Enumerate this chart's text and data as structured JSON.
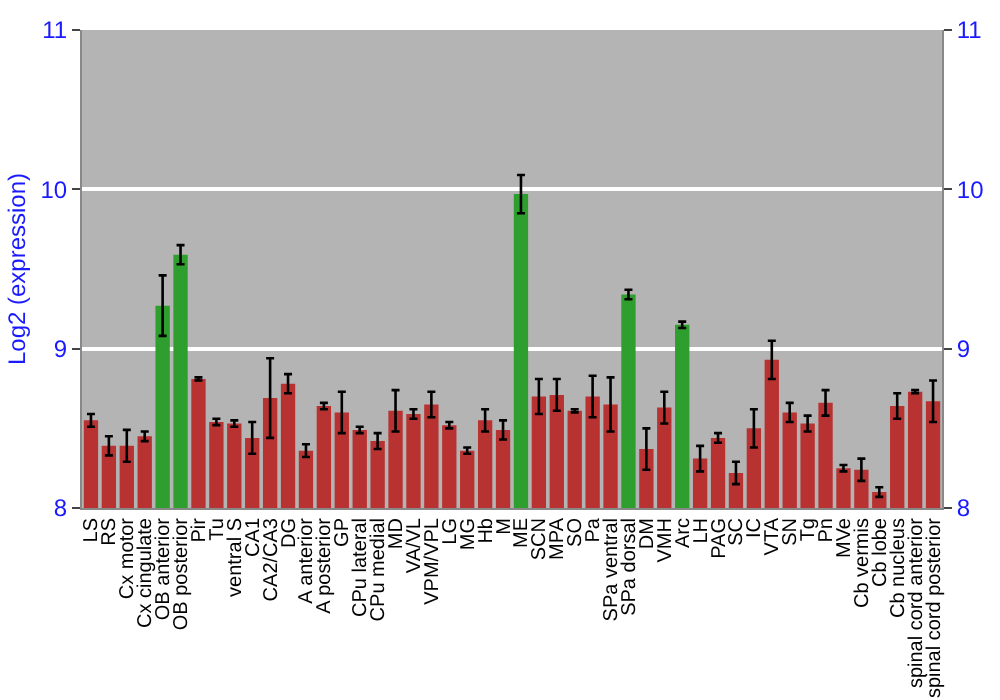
{
  "chart_data": {
    "type": "bar",
    "ylabel": "Log2 (expression)",
    "categories": [
      "LS",
      "RS",
      "Cx motor",
      "Cx cingulate",
      "OB anterior",
      "OB posterior",
      "Pir",
      "Tu",
      "ventral S",
      "CA1",
      "CA2/CA3",
      "DG",
      "A anterior",
      "A posterior",
      "GP",
      "CPu lateral",
      "CPu medial",
      "MD",
      "VA/VL",
      "VPM/VPL",
      "LG",
      "MG",
      "Hb",
      "M",
      "ME",
      "SCN",
      "MPA",
      "SO",
      "Pa",
      "SPa ventral",
      "SPa dorsal",
      "DM",
      "VMH",
      "Arc",
      "LH",
      "PAG",
      "SC",
      "IC",
      "VTA",
      "SN",
      "Tg",
      "Pn",
      "MVe",
      "Cb vermis",
      "Cb lobe",
      "Cb nucleus",
      "spinal cord anterior",
      "spinal cord posterior"
    ],
    "values": [
      8.55,
      8.39,
      8.39,
      8.45,
      9.27,
      9.59,
      8.81,
      8.54,
      8.53,
      8.44,
      8.69,
      8.78,
      8.36,
      8.64,
      8.6,
      8.49,
      8.42,
      8.61,
      8.59,
      8.65,
      8.52,
      8.36,
      8.55,
      8.49,
      9.97,
      8.7,
      8.71,
      8.61,
      8.7,
      8.65,
      9.34,
      8.37,
      8.63,
      9.15,
      8.31,
      8.44,
      8.22,
      8.5,
      8.93,
      8.6,
      8.53,
      8.66,
      8.25,
      8.24,
      8.1,
      8.64,
      8.73,
      8.67
    ],
    "errors": [
      0.04,
      0.06,
      0.1,
      0.03,
      0.19,
      0.06,
      0.01,
      0.02,
      0.02,
      0.1,
      0.25,
      0.06,
      0.04,
      0.02,
      0.13,
      0.02,
      0.05,
      0.13,
      0.03,
      0.08,
      0.02,
      0.02,
      0.07,
      0.06,
      0.12,
      0.11,
      0.1,
      0.01,
      0.13,
      0.17,
      0.03,
      0.13,
      0.1,
      0.02,
      0.08,
      0.03,
      0.07,
      0.12,
      0.12,
      0.06,
      0.05,
      0.08,
      0.02,
      0.07,
      0.03,
      0.08,
      0.01,
      0.13
    ],
    "colors": [
      "#b83232",
      "#b83232",
      "#b83232",
      "#b83232",
      "#2e9e2e",
      "#2e9e2e",
      "#b83232",
      "#b83232",
      "#b83232",
      "#b83232",
      "#b83232",
      "#b83232",
      "#b83232",
      "#b83232",
      "#b83232",
      "#b83232",
      "#b83232",
      "#b83232",
      "#b83232",
      "#b83232",
      "#b83232",
      "#b83232",
      "#b83232",
      "#b83232",
      "#2e9e2e",
      "#b83232",
      "#b83232",
      "#b83232",
      "#b83232",
      "#b83232",
      "#2e9e2e",
      "#b83232",
      "#b83232",
      "#2e9e2e",
      "#b83232",
      "#b83232",
      "#b83232",
      "#b83232",
      "#b83232",
      "#b83232",
      "#b83232",
      "#b83232",
      "#b83232",
      "#b83232",
      "#b83232",
      "#b83232",
      "#b83232",
      "#b83232"
    ],
    "ylim": [
      8,
      11
    ],
    "yticks": [
      8,
      9,
      10,
      11
    ],
    "y2lim": [
      8,
      11
    ],
    "y2ticks": [
      8,
      9,
      10,
      11
    ],
    "grid": "y"
  }
}
